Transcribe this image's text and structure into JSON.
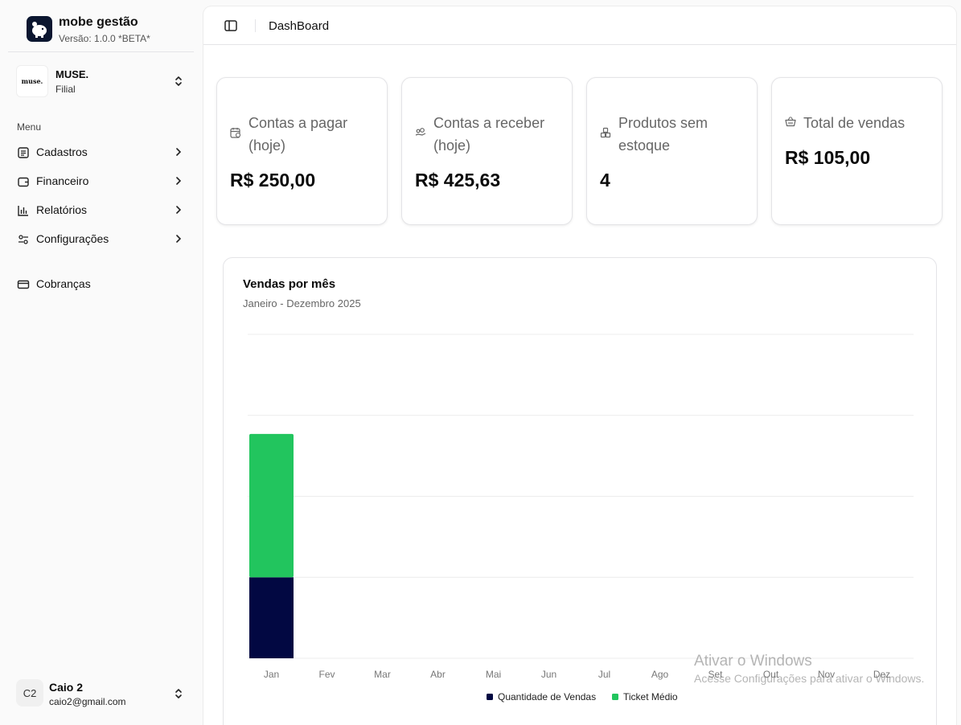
{
  "brand": {
    "name": "mobe gestão",
    "version": "Versão: 1.0.0 *BETA*",
    "logo_icon": "piggy-bank-icon"
  },
  "org": {
    "logo_text": "muse.",
    "name": "MUSE.",
    "subtitle": "Filial"
  },
  "sidebar": {
    "menu_label": "Menu",
    "items": [
      {
        "label": "Cadastros",
        "icon": "list-icon"
      },
      {
        "label": "Financeiro",
        "icon": "wallet-icon"
      },
      {
        "label": "Relatórios",
        "icon": "bar-chart-icon"
      },
      {
        "label": "Configurações",
        "icon": "settings-icon"
      }
    ],
    "extra_item": {
      "label": "Cobranças",
      "icon": "credit-card-icon"
    }
  },
  "user": {
    "initials": "C2",
    "name": "Caio 2",
    "email": "caio2@gmail.com"
  },
  "header": {
    "title": "DashBoard"
  },
  "cards": [
    {
      "title_line1": "Contas a pagar",
      "title_line2": "(hoje)",
      "value": "R$ 250,00",
      "icon": "calendar-clock-icon"
    },
    {
      "title_line1": "Contas a receber",
      "title_line2": "(hoje)",
      "value": "R$ 425,63",
      "icon": "hand-coins-icon"
    },
    {
      "title_line1": "Produtos sem",
      "title_line2": "estoque",
      "value": "4",
      "icon": "boxes-icon"
    },
    {
      "title_line1": "Total de vendas",
      "title_line2": "",
      "value": "R$ 105,00",
      "icon": "shopping-basket-icon"
    }
  ],
  "chart": {
    "title": "Vendas por mês",
    "subtitle": "Janeiro - Dezembro 2025"
  },
  "chart_data": {
    "type": "bar",
    "stacked": true,
    "title": "Vendas por mês",
    "subtitle": "Janeiro - Dezembro 2025",
    "categories": [
      "Jan",
      "Fev",
      "Mar",
      "Abr",
      "Mai",
      "Jun",
      "Jul",
      "Ago",
      "Set",
      "Out",
      "Nov",
      "Dez"
    ],
    "series": [
      {
        "name": "Quantidade de Vendas",
        "color": "#020842",
        "values": [
          1,
          0,
          0,
          0,
          0,
          0,
          0,
          0,
          0,
          0,
          0,
          0
        ]
      },
      {
        "name": "Ticket Médio",
        "color": "#22c55e",
        "values": [
          1.77,
          0,
          0,
          0,
          0,
          0,
          0,
          0,
          0,
          0,
          0,
          0
        ]
      }
    ],
    "ylim": [
      0,
      4
    ],
    "grid": true,
    "legend": "bottom"
  },
  "watermark": {
    "line1": "Ativar o Windows",
    "line2": "Acesse Configurações para ativar o Windows."
  },
  "colors": {
    "accent": "#22c55e",
    "dark": "#020842",
    "brand_logo_bg": "#0b1630"
  }
}
